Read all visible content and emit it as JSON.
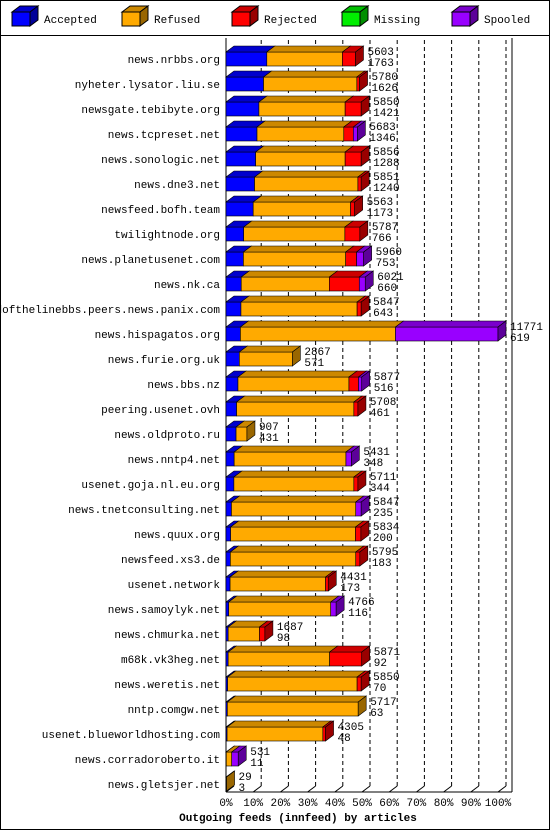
{
  "chart_data": {
    "type": "bar",
    "orientation": "horizontal",
    "stacked": true,
    "xlabel": "Outgoing feeds (innfeed) by articles",
    "categories": [
      "news.nrbbs.org",
      "nyheter.lysator.liu.se",
      "newsgate.tebibyte.org",
      "news.tcpreset.net",
      "news.sonologic.net",
      "news.dne3.net",
      "newsfeed.bofh.team",
      "twilightnode.org",
      "news.planetusenet.com",
      "news.nk.ca",
      "endofthelinebbs.peers.news.panix.com",
      "news.hispagatos.org",
      "news.furie.org.uk",
      "news.bbs.nz",
      "peering.usenet.ovh",
      "news.oldproto.ru",
      "news.nntp4.net",
      "usenet.goja.nl.eu.org",
      "news.tnetconsulting.net",
      "news.quux.org",
      "newsfeed.xs3.de",
      "usenet.network",
      "news.samoylyk.net",
      "news.chmurka.net",
      "m68k.vk3heg.net",
      "news.weretis.net",
      "nntp.comgw.net",
      "usenet.blueworldhosting.com",
      "news.corradoroberto.it",
      "news.gletsjer.net"
    ],
    "series": [
      {
        "name": "Accepted",
        "color": "#0000ff",
        "values": [
          15.0,
          13.8,
          12.1,
          11.4,
          10.9,
          10.5,
          10.0,
          6.5,
          6.4,
          5.6,
          5.5,
          5.3,
          4.9,
          4.4,
          3.9,
          3.7,
          3.0,
          2.9,
          2.0,
          1.7,
          1.6,
          1.5,
          1.0,
          0.8,
          0.8,
          0.6,
          0.5,
          0.4,
          0.1,
          0
        ]
      },
      {
        "name": "Refused",
        "color": "#ffaa00",
        "values": [
          27.8,
          34.3,
          31.7,
          31.9,
          32.9,
          38.0,
          35.8,
          37.2,
          37.6,
          32.4,
          42.7,
          57.0,
          19.5,
          40.8,
          43.1,
          4.0,
          41.1,
          44.1,
          45.7,
          45.9,
          46.1,
          35.1,
          37.5,
          11.5,
          37.3,
          47.6,
          48.1,
          35.2,
          2.0,
          0.2
        ]
      },
      {
        "name": "Rejected",
        "color": "#ff0000",
        "values": [
          4.8,
          1.0,
          5.9,
          3.5,
          5.9,
          1.2,
          1.5,
          5.5,
          4.0,
          11.0,
          1.5,
          0,
          0,
          3.5,
          1.5,
          0,
          0,
          1.5,
          0,
          2.0,
          1.5,
          1.0,
          0,
          2.0,
          11.8,
          1.5,
          0,
          1.0,
          0,
          0
        ]
      },
      {
        "name": "Missing",
        "color": "#00ee00",
        "values": [
          0,
          0,
          0,
          0,
          0,
          0,
          0,
          0,
          0,
          0,
          0,
          0,
          0,
          0,
          0,
          0,
          0,
          0,
          0,
          0,
          0,
          0,
          0,
          0,
          0,
          0,
          0,
          0,
          0,
          0
        ]
      },
      {
        "name": "Spooled",
        "color": "#9900ff",
        "values": [
          0,
          0,
          0,
          1.5,
          0,
          0,
          0,
          0,
          2.6,
          2.2,
          0,
          37.7,
          0,
          1.2,
          0,
          0,
          2.0,
          0,
          2.0,
          0,
          0,
          0,
          2.0,
          0,
          0,
          0,
          0,
          0,
          2.4,
          0
        ]
      }
    ],
    "offered": [
      5603,
      5780,
      5850,
      5683,
      5856,
      5851,
      5563,
      5787,
      5960,
      6021,
      5847,
      11771,
      2867,
      5877,
      5708,
      907,
      5431,
      5711,
      5847,
      5834,
      5795,
      4431,
      4766,
      1687,
      5871,
      5850,
      5717,
      4305,
      531,
      29
    ],
    "accepted": [
      1763,
      1626,
      1421,
      1346,
      1288,
      1240,
      1173,
      766,
      753,
      660,
      643,
      619,
      571,
      516,
      461,
      431,
      348,
      344,
      235,
      200,
      183,
      173,
      116,
      98,
      92,
      70,
      63,
      48,
      11,
      3
    ],
    "xlim": [
      0,
      100
    ],
    "xticks": [
      {
        "value": 0,
        "label": "0%"
      },
      {
        "value": 10,
        "label": "10%"
      },
      {
        "value": 20,
        "label": "20%"
      },
      {
        "value": 30,
        "label": "30%"
      },
      {
        "value": 40,
        "label": "40%"
      },
      {
        "value": 50,
        "label": "50%"
      },
      {
        "value": 60,
        "label": "60%"
      },
      {
        "value": 70,
        "label": "70%"
      },
      {
        "value": 80,
        "label": "80%"
      },
      {
        "value": 90,
        "label": "90%"
      },
      {
        "value": 100,
        "label": "100%"
      }
    ],
    "grid": true
  }
}
